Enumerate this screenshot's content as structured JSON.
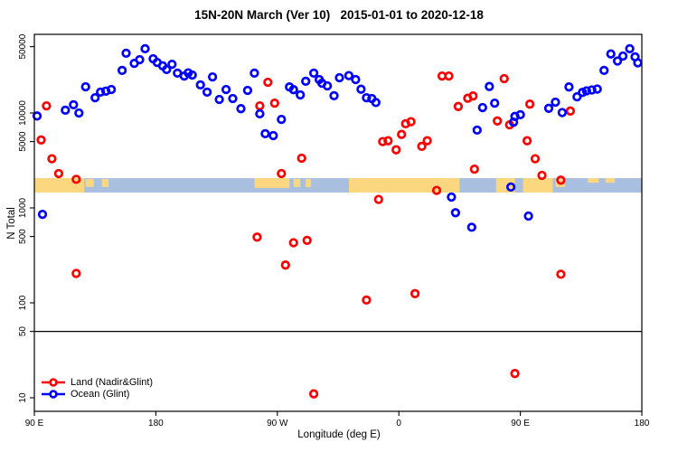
{
  "chart_data": {
    "type": "scatter",
    "title": "15N-20N March (Ver 10)   2015-01-01 to 2020-12-18",
    "xlabel": "Longitude (deg E)",
    "ylabel": "N Total",
    "x_axis": {
      "range_deg": [
        90,
        540
      ],
      "ticks": [
        {
          "deg": 90,
          "label": "90 E"
        },
        {
          "deg": 180,
          "label": "180"
        },
        {
          "deg": 270,
          "label": "90 W"
        },
        {
          "deg": 360,
          "label": "0"
        },
        {
          "deg": 450,
          "label": "90 E"
        },
        {
          "deg": 540,
          "label": "180"
        }
      ]
    },
    "y_axis": {
      "scale": "log",
      "range": [
        10,
        50000
      ],
      "ticks": [
        "10",
        "50",
        "100",
        "500",
        "1000",
        "5000",
        "10000",
        "50000"
      ]
    },
    "reference_line_y": 50,
    "map_band": {
      "n_top": 2060,
      "n_bottom": 1450,
      "ocean_color": "#a9bfe0",
      "land_color": "#fbd780",
      "land_segments": [
        {
          "from": 90,
          "to": 127,
          "style": "full"
        },
        {
          "from": 128,
          "to": 134,
          "style": "speck"
        },
        {
          "from": 140,
          "to": 145,
          "style": "speck"
        },
        {
          "from": 253,
          "to": 279,
          "style": "upper"
        },
        {
          "from": 282,
          "to": 287,
          "style": "speck"
        },
        {
          "from": 291,
          "to": 295,
          "style": "speck"
        },
        {
          "from": 323,
          "to": 405,
          "style": "full"
        },
        {
          "from": 432,
          "to": 446,
          "style": "full"
        },
        {
          "from": 452,
          "to": 474,
          "style": "full"
        },
        {
          "from": 476,
          "to": 483,
          "style": "speck"
        },
        {
          "from": 500,
          "to": 508,
          "style": "thin"
        },
        {
          "from": 513,
          "to": 520,
          "style": "thin"
        }
      ]
    },
    "series": [
      {
        "name": "Land (Nadir&Glint)",
        "color": "#ff0000",
        "points": [
          [
            95,
            5200
          ],
          [
            99,
            11900
          ],
          [
            103,
            3300
          ],
          [
            108,
            2300
          ],
          [
            121,
            2000
          ],
          [
            121,
            204
          ],
          [
            255,
            492
          ],
          [
            257,
            11900
          ],
          [
            263,
            21100
          ],
          [
            268,
            12700
          ],
          [
            273,
            2300
          ],
          [
            276,
            250
          ],
          [
            282,
            430
          ],
          [
            288,
            3340
          ],
          [
            292,
            455
          ],
          [
            297,
            11
          ],
          [
            336,
            107
          ],
          [
            345,
            1230
          ],
          [
            348,
            5000
          ],
          [
            352,
            5100
          ],
          [
            358,
            4100
          ],
          [
            362,
            5950
          ],
          [
            365,
            7700
          ],
          [
            369,
            8100
          ],
          [
            372,
            125
          ],
          [
            377,
            4450
          ],
          [
            381,
            5100
          ],
          [
            388,
            1530
          ],
          [
            392,
            24500
          ],
          [
            397,
            24500
          ],
          [
            404,
            11700
          ],
          [
            411,
            14300
          ],
          [
            415,
            15100
          ],
          [
            416,
            2560
          ],
          [
            433,
            8250
          ],
          [
            438,
            23000
          ],
          [
            442,
            7500
          ],
          [
            446,
            18
          ],
          [
            455,
            5100
          ],
          [
            457,
            12400
          ],
          [
            461,
            3300
          ],
          [
            466,
            2200
          ],
          [
            480,
            1960
          ],
          [
            480,
            200
          ],
          [
            487,
            10500
          ]
        ]
      },
      {
        "name": "Ocean (Glint)",
        "color": "#0000ff",
        "points": [
          [
            92,
            9300
          ],
          [
            96,
            855
          ],
          [
            113,
            10700
          ],
          [
            119,
            12200
          ],
          [
            123,
            10000
          ],
          [
            128,
            18900
          ],
          [
            135,
            14500
          ],
          [
            139,
            16600
          ],
          [
            143,
            17000
          ],
          [
            147,
            17700
          ],
          [
            155,
            28100
          ],
          [
            158,
            42600
          ],
          [
            164,
            33300
          ],
          [
            168,
            36500
          ],
          [
            172,
            47600
          ],
          [
            178,
            37300
          ],
          [
            181,
            34100
          ],
          [
            185,
            31400
          ],
          [
            188,
            28700
          ],
          [
            192,
            32600
          ],
          [
            196,
            26300
          ],
          [
            201,
            24500
          ],
          [
            204,
            26500
          ],
          [
            207,
            25100
          ],
          [
            213,
            19800
          ],
          [
            218,
            16600
          ],
          [
            222,
            24000
          ],
          [
            227,
            13900
          ],
          [
            232,
            17700
          ],
          [
            237,
            14200
          ],
          [
            243,
            11100
          ],
          [
            248,
            17300
          ],
          [
            253,
            26300
          ],
          [
            257,
            9800
          ],
          [
            261,
            6050
          ],
          [
            267,
            5780
          ],
          [
            273,
            8560
          ],
          [
            279,
            18800
          ],
          [
            282,
            17600
          ],
          [
            287,
            15500
          ],
          [
            291,
            21600
          ],
          [
            297,
            26300
          ],
          [
            301,
            22500
          ],
          [
            303,
            20600
          ],
          [
            307,
            19300
          ],
          [
            312,
            15200
          ],
          [
            316,
            23500
          ],
          [
            323,
            24800
          ],
          [
            328,
            22500
          ],
          [
            332,
            17800
          ],
          [
            336,
            14500
          ],
          [
            340,
            14200
          ],
          [
            343,
            12900
          ],
          [
            399,
            1300
          ],
          [
            402,
            890
          ],
          [
            414,
            625
          ],
          [
            418,
            6600
          ],
          [
            422,
            11400
          ],
          [
            427,
            19000
          ],
          [
            431,
            12700
          ],
          [
            443,
            1660
          ],
          [
            445,
            8000
          ],
          [
            446,
            9200
          ],
          [
            450,
            9600
          ],
          [
            456,
            820
          ],
          [
            471,
            11200
          ],
          [
            476,
            13000
          ],
          [
            481,
            10100
          ],
          [
            486,
            18800
          ],
          [
            492,
            14800
          ],
          [
            496,
            16500
          ],
          [
            499,
            17100
          ],
          [
            503,
            17500
          ],
          [
            507,
            17900
          ],
          [
            512,
            28100
          ],
          [
            517,
            41900
          ],
          [
            522,
            35300
          ],
          [
            526,
            39800
          ],
          [
            531,
            47600
          ],
          [
            535,
            39000
          ],
          [
            537,
            33800
          ]
        ]
      }
    ]
  }
}
